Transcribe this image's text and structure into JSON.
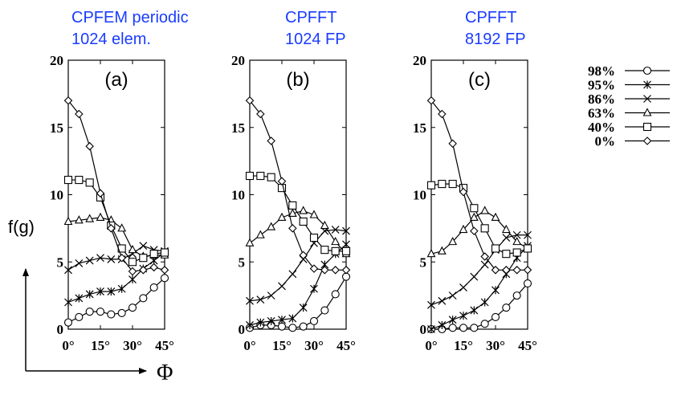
{
  "y_axis_label": "f(g)",
  "x_axis_label": "Φ",
  "legend": [
    {
      "label": "98%",
      "marker": "circle"
    },
    {
      "label": "95%",
      "marker": "star"
    },
    {
      "label": "86%",
      "marker": "cross"
    },
    {
      "label": "63%",
      "marker": "triangle"
    },
    {
      "label": "40%",
      "marker": "square"
    },
    {
      "label": "0%",
      "marker": "diamond"
    }
  ],
  "chart_data": [
    {
      "type": "line",
      "title_line1": "CPFEM periodic",
      "title_line2": "1024 elem.",
      "panel_label": "(a)",
      "x": [
        0,
        5,
        10,
        15,
        20,
        25,
        30,
        35,
        40,
        45
      ],
      "x_tick_labels": [
        "0°",
        "15°",
        "30°",
        "45°"
      ],
      "x_ticks": [
        0,
        15,
        30,
        45
      ],
      "y_ticks": [
        0,
        5,
        10,
        15,
        20
      ],
      "xlim": [
        0,
        45
      ],
      "ylim": [
        0,
        20
      ],
      "series": [
        {
          "name": "98%",
          "marker": "circle",
          "values": [
            0.5,
            0.9,
            1.3,
            1.3,
            1.1,
            1.2,
            1.6,
            2.3,
            3.1,
            3.8
          ]
        },
        {
          "name": "95%",
          "marker": "star",
          "values": [
            2.0,
            2.3,
            2.6,
            2.8,
            2.8,
            3.0,
            3.7,
            4.5,
            5.1,
            5.7
          ]
        },
        {
          "name": "86%",
          "marker": "cross",
          "values": [
            4.4,
            4.9,
            5.1,
            5.3,
            5.2,
            5.2,
            5.6,
            6.2,
            5.9,
            5.8
          ]
        },
        {
          "name": "63%",
          "marker": "triangle",
          "values": [
            8.0,
            8.1,
            8.2,
            8.3,
            8.1,
            7.5,
            5.9,
            5.4,
            5.5,
            5.5
          ]
        },
        {
          "name": "40%",
          "marker": "square",
          "values": [
            11.1,
            11.1,
            10.9,
            9.8,
            7.7,
            6.0,
            5.0,
            5.3,
            5.6,
            5.7
          ]
        },
        {
          "name": "0%",
          "marker": "diamond",
          "values": [
            17.0,
            16.0,
            13.6,
            10.1,
            7.5,
            5.3,
            4.3,
            4.4,
            4.6,
            4.4
          ]
        }
      ]
    },
    {
      "type": "line",
      "title_line1": "CPFFT",
      "title_line2": "1024 FP",
      "panel_label": "(b)",
      "x": [
        0,
        5,
        10,
        15,
        20,
        25,
        30,
        35,
        40,
        45
      ],
      "x_tick_labels": [
        "0°",
        "15°",
        "30°",
        "45°"
      ],
      "x_ticks": [
        0,
        15,
        30,
        45
      ],
      "y_ticks": [
        0,
        5,
        10,
        15,
        20
      ],
      "xlim": [
        0,
        45
      ],
      "ylim": [
        0,
        20
      ],
      "series": [
        {
          "name": "98%",
          "marker": "circle",
          "values": [
            0.1,
            0.3,
            0.3,
            0.2,
            0.1,
            0.2,
            0.6,
            1.4,
            2.6,
            3.9
          ]
        },
        {
          "name": "95%",
          "marker": "star",
          "values": [
            0.3,
            0.5,
            0.6,
            0.7,
            0.8,
            1.6,
            3.0,
            4.8,
            5.6,
            6.3
          ]
        },
        {
          "name": "86%",
          "marker": "cross",
          "values": [
            2.1,
            2.2,
            2.5,
            3.2,
            4.1,
            5.2,
            6.4,
            7.3,
            7.4,
            7.3
          ]
        },
        {
          "name": "63%",
          "marker": "triangle",
          "values": [
            6.4,
            7.0,
            7.6,
            8.3,
            8.6,
            8.8,
            8.5,
            7.7,
            6.5,
            5.6
          ]
        },
        {
          "name": "40%",
          "marker": "square",
          "values": [
            11.4,
            11.4,
            11.3,
            10.5,
            9.2,
            8.0,
            6.8,
            5.9,
            5.8,
            5.8
          ]
        },
        {
          "name": "0%",
          "marker": "diamond",
          "values": [
            17.0,
            16.0,
            14.0,
            11.0,
            7.5,
            5.5,
            4.5,
            4.4,
            4.4,
            4.4
          ]
        }
      ]
    },
    {
      "type": "line",
      "title_line1": "CPFFT",
      "title_line2": "8192 FP",
      "panel_label": "(c)",
      "x": [
        0,
        5,
        10,
        15,
        20,
        25,
        30,
        35,
        40,
        45
      ],
      "x_tick_labels": [
        "0°",
        "15°",
        "30°",
        "45°"
      ],
      "x_ticks": [
        0,
        15,
        30,
        45
      ],
      "y_ticks": [
        0,
        5,
        10,
        15,
        20
      ],
      "xlim": [
        0,
        45
      ],
      "ylim": [
        0,
        20
      ],
      "series": [
        {
          "name": "98%",
          "marker": "circle",
          "values": [
            0.0,
            0.0,
            0.1,
            0.1,
            0.1,
            0.4,
            0.9,
            1.6,
            2.5,
            3.4
          ]
        },
        {
          "name": "95%",
          "marker": "star",
          "values": [
            0.0,
            0.3,
            0.7,
            1.0,
            1.4,
            2.0,
            2.9,
            4.1,
            5.3,
            6.2
          ]
        },
        {
          "name": "86%",
          "marker": "cross",
          "values": [
            1.8,
            2.1,
            2.5,
            3.1,
            3.9,
            4.8,
            5.9,
            6.8,
            7.0,
            7.0
          ]
        },
        {
          "name": "63%",
          "marker": "triangle",
          "values": [
            5.6,
            5.8,
            6.5,
            7.4,
            8.3,
            8.8,
            8.3,
            7.4,
            6.5,
            6.0
          ]
        },
        {
          "name": "40%",
          "marker": "square",
          "values": [
            10.7,
            10.8,
            10.8,
            10.5,
            9.0,
            7.5,
            6.0,
            5.6,
            5.7,
            6.0
          ]
        },
        {
          "name": "0%",
          "marker": "diamond",
          "values": [
            17.0,
            16.0,
            13.8,
            10.2,
            7.3,
            5.4,
            4.4,
            4.4,
            4.4,
            4.4
          ]
        }
      ]
    }
  ]
}
